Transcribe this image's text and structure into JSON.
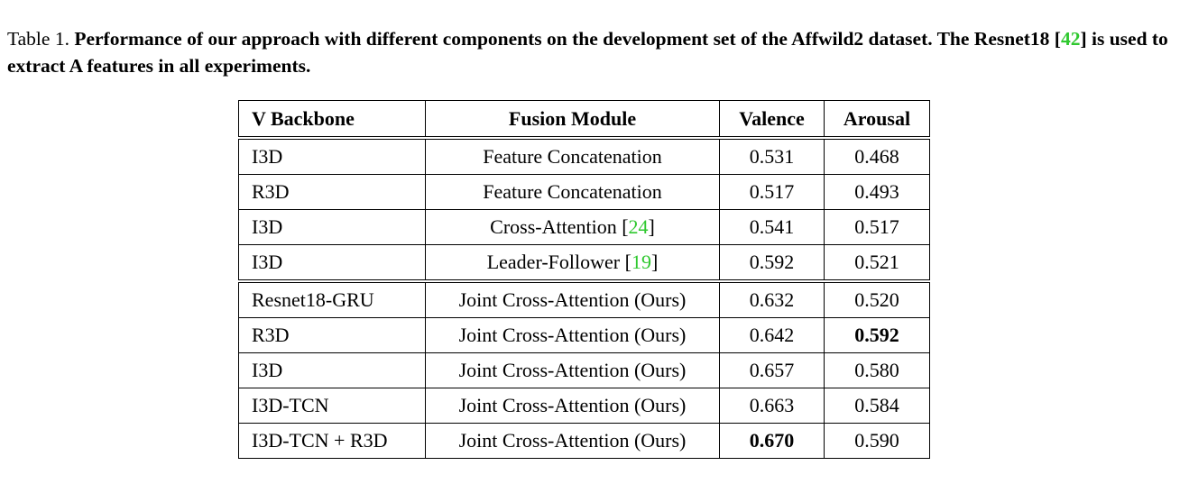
{
  "caption": {
    "label": "Table 1.",
    "text_before_cite": "Performance of our approach with different components on the development set of the Affwild2 dataset. The Resnet18 [",
    "cite": "42",
    "text_after_cite": "] is used to extract A features in all experiments."
  },
  "table": {
    "headers": [
      "V Backbone",
      "Fusion Module",
      "Valence",
      "Arousal"
    ],
    "rows": [
      {
        "backbone": "I3D",
        "fusion": "Feature Concatenation",
        "fusion_cite": "",
        "valence": "0.531",
        "arousal": "0.468"
      },
      {
        "backbone": "R3D",
        "fusion": "Feature Concatenation",
        "fusion_cite": "",
        "valence": "0.517",
        "arousal": "0.493"
      },
      {
        "backbone": "I3D",
        "fusion": "Cross-Attention [",
        "fusion_cite": "24",
        "fusion_end": "]",
        "valence": "0.541",
        "arousal": "0.517"
      },
      {
        "backbone": "I3D",
        "fusion": "Leader-Follower [",
        "fusion_cite": "19",
        "fusion_end": "]",
        "valence": "0.592",
        "arousal": "0.521"
      },
      {
        "backbone": "Resnet18-GRU",
        "fusion": "Joint Cross-Attention (Ours)",
        "fusion_cite": "",
        "valence": "0.632",
        "arousal": "0.520"
      },
      {
        "backbone": "R3D",
        "fusion": "Joint Cross-Attention (Ours)",
        "fusion_cite": "",
        "valence": "0.642",
        "arousal": "0.592"
      },
      {
        "backbone": "I3D",
        "fusion": "Joint Cross-Attention (Ours)",
        "fusion_cite": "",
        "valence": "0.657",
        "arousal": "0.580"
      },
      {
        "backbone": "I3D-TCN",
        "fusion": "Joint Cross-Attention (Ours)",
        "fusion_cite": "",
        "valence": "0.663",
        "arousal": "0.584"
      },
      {
        "backbone": "I3D-TCN + R3D",
        "fusion": "Joint Cross-Attention (Ours)",
        "fusion_cite": "",
        "valence": "0.670",
        "arousal": "0.590"
      }
    ],
    "bold_cells": {
      "valence_best": "0.670",
      "arousal_best": "0.592"
    }
  },
  "colors": {
    "citation": "#2fc82f",
    "text": "#000000"
  }
}
